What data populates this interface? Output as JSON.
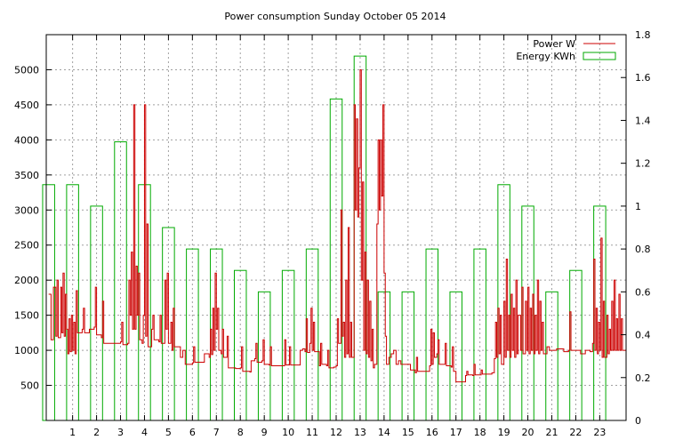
{
  "chart_data": {
    "type": "line",
    "title": "Power consumption Sunday October 05 2014",
    "x_ticks": [
      "1",
      "2",
      "3",
      "4",
      "5",
      "6",
      "7",
      "8",
      "9",
      "10",
      "11",
      "12",
      "13",
      "14",
      "15",
      "16",
      "17",
      "18",
      "19",
      "20",
      "21",
      "22",
      "23"
    ],
    "x_range": [
      -0.1,
      24.1
    ],
    "y_left": {
      "range": [
        0,
        5500
      ],
      "ticks": [
        "500",
        "1000",
        "1500",
        "2000",
        "2500",
        "3000",
        "3500",
        "4000",
        "4500",
        "5000"
      ]
    },
    "y_right": {
      "range": [
        0,
        1.8
      ],
      "ticks": [
        "0",
        "0.2",
        "0.4",
        "0.6",
        "0.8",
        "1",
        "1.2",
        "1.4",
        "1.6",
        "1.8"
      ]
    },
    "grid": true,
    "legend_position": "top-right",
    "series": [
      {
        "name": "Power W",
        "axis": "left",
        "color": "#cc0000",
        "points": [
          [
            0.0,
            1800
          ],
          [
            0.1,
            1150
          ],
          [
            0.2,
            1900
          ],
          [
            0.3,
            1200
          ],
          [
            0.35,
            2000
          ],
          [
            0.4,
            1180
          ],
          [
            0.5,
            1900
          ],
          [
            0.55,
            1250
          ],
          [
            0.6,
            2100
          ],
          [
            0.65,
            1200
          ],
          [
            0.7,
            1800
          ],
          [
            0.75,
            1300
          ],
          [
            0.8,
            950
          ],
          [
            0.85,
            1450
          ],
          [
            0.9,
            980
          ],
          [
            0.95,
            1500
          ],
          [
            1.0,
            1000
          ],
          [
            1.05,
            1400
          ],
          [
            1.1,
            950
          ],
          [
            1.15,
            1850
          ],
          [
            1.2,
            1250
          ],
          [
            1.4,
            1300
          ],
          [
            1.45,
            1600
          ],
          [
            1.5,
            1250
          ],
          [
            1.7,
            1300
          ],
          [
            1.9,
            1330
          ],
          [
            1.95,
            1900
          ],
          [
            2.0,
            1220
          ],
          [
            2.2,
            1180
          ],
          [
            2.25,
            1700
          ],
          [
            2.3,
            1100
          ],
          [
            2.6,
            1100
          ],
          [
            3.0,
            1120
          ],
          [
            3.05,
            1400
          ],
          [
            3.1,
            1080
          ],
          [
            3.3,
            1100
          ],
          [
            3.35,
            2000
          ],
          [
            3.4,
            1500
          ],
          [
            3.45,
            2400
          ],
          [
            3.5,
            1300
          ],
          [
            3.55,
            4500
          ],
          [
            3.6,
            1300
          ],
          [
            3.65,
            2200
          ],
          [
            3.7,
            1500
          ],
          [
            3.75,
            2100
          ],
          [
            3.8,
            1150
          ],
          [
            3.9,
            1100
          ],
          [
            3.95,
            1500
          ],
          [
            4.0,
            4500
          ],
          [
            4.05,
            1200
          ],
          [
            4.1,
            2800
          ],
          [
            4.15,
            1050
          ],
          [
            4.3,
            1300
          ],
          [
            4.35,
            1500
          ],
          [
            4.4,
            1150
          ],
          [
            4.6,
            1120
          ],
          [
            4.65,
            1500
          ],
          [
            4.7,
            1100
          ],
          [
            4.85,
            2000
          ],
          [
            4.9,
            1300
          ],
          [
            4.95,
            2100
          ],
          [
            5.0,
            1100
          ],
          [
            5.1,
            1400
          ],
          [
            5.15,
            1000
          ],
          [
            5.2,
            1600
          ],
          [
            5.25,
            1050
          ],
          [
            5.5,
            900
          ],
          [
            5.6,
            1000
          ],
          [
            5.7,
            800
          ],
          [
            6.0,
            820
          ],
          [
            6.05,
            1050
          ],
          [
            6.1,
            830
          ],
          [
            6.4,
            830
          ],
          [
            6.5,
            950
          ],
          [
            6.7,
            900
          ],
          [
            6.75,
            1300
          ],
          [
            6.8,
            940
          ],
          [
            6.85,
            1600
          ],
          [
            6.9,
            1000
          ],
          [
            6.95,
            2100
          ],
          [
            7.0,
            1300
          ],
          [
            7.05,
            1600
          ],
          [
            7.1,
            1000
          ],
          [
            7.2,
            950
          ],
          [
            7.25,
            1300
          ],
          [
            7.3,
            900
          ],
          [
            7.45,
            1200
          ],
          [
            7.5,
            750
          ],
          [
            7.8,
            740
          ],
          [
            8.0,
            750
          ],
          [
            8.05,
            1050
          ],
          [
            8.1,
            700
          ],
          [
            8.4,
            690
          ],
          [
            8.45,
            850
          ],
          [
            8.6,
            880
          ],
          [
            8.65,
            1100
          ],
          [
            8.7,
            830
          ],
          [
            8.9,
            850
          ],
          [
            8.95,
            1150
          ],
          [
            9.0,
            800
          ],
          [
            9.2,
            790
          ],
          [
            9.25,
            1050
          ],
          [
            9.3,
            780
          ],
          [
            9.8,
            780
          ],
          [
            9.85,
            1150
          ],
          [
            9.9,
            790
          ],
          [
            10.0,
            790
          ],
          [
            10.05,
            1050
          ],
          [
            10.1,
            790
          ],
          [
            10.5,
            1000
          ],
          [
            10.6,
            1020
          ],
          [
            10.7,
            980
          ],
          [
            10.75,
            1450
          ],
          [
            10.8,
            970
          ],
          [
            10.9,
            1100
          ],
          [
            10.95,
            1600
          ],
          [
            11.0,
            1000
          ],
          [
            11.05,
            1400
          ],
          [
            11.1,
            980
          ],
          [
            11.3,
            780
          ],
          [
            11.35,
            1100
          ],
          [
            11.4,
            800
          ],
          [
            11.6,
            780
          ],
          [
            11.65,
            1000
          ],
          [
            11.7,
            750
          ],
          [
            11.9,
            760
          ],
          [
            12.0,
            780
          ],
          [
            12.05,
            1450
          ],
          [
            12.1,
            1100
          ],
          [
            12.2,
            3000
          ],
          [
            12.25,
            1200
          ],
          [
            12.3,
            1400
          ],
          [
            12.35,
            900
          ],
          [
            12.4,
            2000
          ],
          [
            12.45,
            950
          ],
          [
            12.5,
            2750
          ],
          [
            12.55,
            900
          ],
          [
            12.6,
            1400
          ],
          [
            12.65,
            900
          ],
          [
            12.75,
            4500
          ],
          [
            12.8,
            3000
          ],
          [
            12.85,
            4300
          ],
          [
            12.9,
            2900
          ],
          [
            12.95,
            3600
          ],
          [
            13.0,
            5000
          ],
          [
            13.05,
            2000
          ],
          [
            13.1,
            3400
          ],
          [
            13.15,
            1000
          ],
          [
            13.2,
            2400
          ],
          [
            13.25,
            950
          ],
          [
            13.3,
            2000
          ],
          [
            13.35,
            900
          ],
          [
            13.4,
            1700
          ],
          [
            13.45,
            850
          ],
          [
            13.5,
            1300
          ],
          [
            13.55,
            750
          ],
          [
            13.6,
            800
          ],
          [
            13.7,
            2800
          ],
          [
            13.75,
            4000
          ],
          [
            13.8,
            3000
          ],
          [
            13.85,
            4000
          ],
          [
            13.9,
            3200
          ],
          [
            13.95,
            4500
          ],
          [
            14.0,
            2100
          ],
          [
            14.05,
            1200
          ],
          [
            14.1,
            800
          ],
          [
            14.2,
            900
          ],
          [
            14.3,
            950
          ],
          [
            14.4,
            1000
          ],
          [
            14.5,
            800
          ],
          [
            14.6,
            850
          ],
          [
            14.7,
            800
          ],
          [
            15.0,
            800
          ],
          [
            15.1,
            720
          ],
          [
            15.3,
            680
          ],
          [
            15.35,
            900
          ],
          [
            15.4,
            700
          ],
          [
            15.9,
            780
          ],
          [
            15.95,
            1300
          ],
          [
            16.0,
            800
          ],
          [
            16.05,
            1250
          ],
          [
            16.1,
            900
          ],
          [
            16.2,
            950
          ],
          [
            16.25,
            1150
          ],
          [
            16.3,
            800
          ],
          [
            16.5,
            800
          ],
          [
            16.55,
            1100
          ],
          [
            16.6,
            780
          ],
          [
            16.8,
            760
          ],
          [
            16.85,
            1050
          ],
          [
            16.9,
            700
          ],
          [
            17.0,
            550
          ],
          [
            17.4,
            640
          ],
          [
            17.45,
            700
          ],
          [
            17.5,
            650
          ],
          [
            17.7,
            640
          ],
          [
            17.75,
            800
          ],
          [
            17.8,
            650
          ],
          [
            18.0,
            650
          ],
          [
            18.05,
            720
          ],
          [
            18.1,
            660
          ],
          [
            18.5,
            680
          ],
          [
            18.6,
            880
          ],
          [
            18.65,
            1400
          ],
          [
            18.7,
            900
          ],
          [
            18.75,
            1600
          ],
          [
            18.8,
            950
          ],
          [
            18.85,
            1500
          ],
          [
            18.9,
            800
          ],
          [
            19.0,
            1700
          ],
          [
            19.05,
            900
          ],
          [
            19.1,
            2300
          ],
          [
            19.15,
            1000
          ],
          [
            19.2,
            1500
          ],
          [
            19.25,
            900
          ],
          [
            19.3,
            1800
          ],
          [
            19.35,
            1000
          ],
          [
            19.4,
            1600
          ],
          [
            19.45,
            900
          ],
          [
            19.5,
            2000
          ],
          [
            19.55,
            950
          ],
          [
            19.6,
            1500
          ],
          [
            19.7,
            1000
          ],
          [
            19.75,
            1900
          ],
          [
            19.8,
            950
          ],
          [
            19.9,
            1700
          ],
          [
            19.95,
            1000
          ],
          [
            20.0,
            1900
          ],
          [
            20.05,
            950
          ],
          [
            20.1,
            1600
          ],
          [
            20.15,
            1000
          ],
          [
            20.2,
            1800
          ],
          [
            20.25,
            950
          ],
          [
            20.3,
            1500
          ],
          [
            20.35,
            1000
          ],
          [
            20.4,
            2000
          ],
          [
            20.45,
            950
          ],
          [
            20.5,
            1700
          ],
          [
            20.55,
            1000
          ],
          [
            20.6,
            1400
          ],
          [
            20.65,
            950
          ],
          [
            20.8,
            1050
          ],
          [
            20.9,
            1000
          ],
          [
            21.2,
            1020
          ],
          [
            21.5,
            980
          ],
          [
            21.7,
            1000
          ],
          [
            21.75,
            1550
          ],
          [
            21.8,
            1000
          ],
          [
            22.0,
            1000
          ],
          [
            22.2,
            950
          ],
          [
            22.4,
            1000
          ],
          [
            22.6,
            980
          ],
          [
            22.7,
            1100
          ],
          [
            22.75,
            2300
          ],
          [
            22.8,
            1000
          ],
          [
            22.85,
            1600
          ],
          [
            22.9,
            950
          ],
          [
            22.95,
            1400
          ],
          [
            23.0,
            1000
          ],
          [
            23.05,
            2600
          ],
          [
            23.1,
            900
          ],
          [
            23.15,
            1700
          ],
          [
            23.2,
            900
          ],
          [
            23.3,
            1500
          ],
          [
            23.35,
            950
          ],
          [
            23.4,
            1300
          ],
          [
            23.45,
            1000
          ],
          [
            23.5,
            1700
          ],
          [
            23.55,
            1000
          ],
          [
            23.6,
            2000
          ],
          [
            23.65,
            1000
          ],
          [
            23.7,
            1450
          ],
          [
            23.75,
            1000
          ],
          [
            23.8,
            1800
          ],
          [
            23.85,
            1000
          ],
          [
            23.9,
            1450
          ],
          [
            23.95,
            1000
          ],
          [
            24.0,
            1000
          ]
        ]
      },
      {
        "name": "Energy KWh",
        "axis": "right",
        "color": "#00aa00",
        "type": "impulse_box",
        "hours": [
          0,
          1,
          2,
          3,
          4,
          5,
          6,
          7,
          8,
          9,
          10,
          11,
          12,
          13,
          14,
          15,
          16,
          17,
          18,
          19,
          20,
          21,
          22,
          23
        ],
        "values": [
          1.1,
          1.1,
          1.0,
          1.3,
          1.1,
          0.9,
          0.8,
          0.8,
          0.7,
          0.6,
          0.7,
          0.8,
          1.5,
          1.7,
          0.6,
          0.6,
          0.8,
          0.6,
          0.8,
          1.1,
          1.0,
          0.6,
          0.7,
          1.0
        ]
      }
    ]
  }
}
